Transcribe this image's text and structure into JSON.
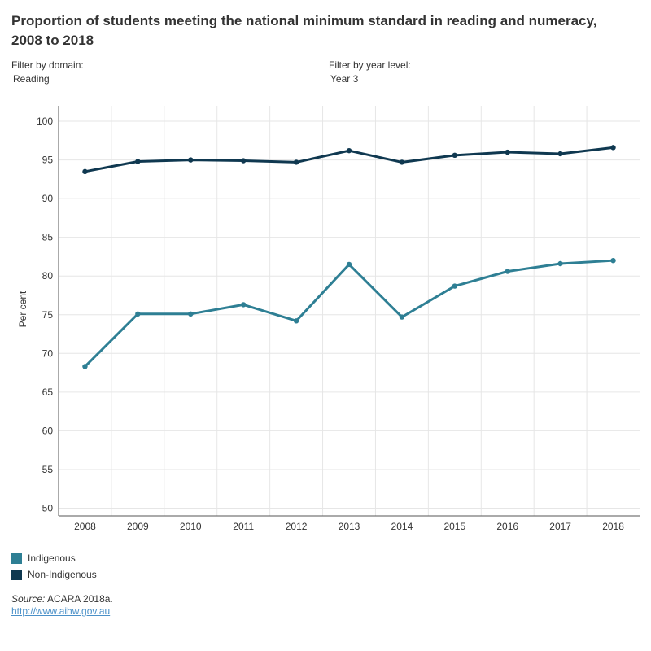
{
  "title": "Proportion of students meeting the national minimum standard in reading and numeracy, 2008 to 2018",
  "filters": {
    "domain": {
      "label": "Filter by domain:",
      "value": "Reading"
    },
    "year_level": {
      "label": "Filter by year level:",
      "value": "Year 3"
    }
  },
  "chart_data": {
    "type": "line",
    "title": "Proportion of students meeting the national minimum standard in reading and numeracy, 2008 to 2018",
    "xlabel": "",
    "ylabel": "Per cent",
    "x": [
      "2008",
      "2009",
      "2010",
      "2011",
      "2012",
      "2013",
      "2014",
      "2015",
      "2016",
      "2017",
      "2018"
    ],
    "ylim": [
      49,
      102
    ],
    "yticks": [
      50,
      55,
      60,
      65,
      70,
      75,
      80,
      85,
      90,
      95,
      100
    ],
    "grid": true,
    "series": [
      {
        "name": "Indigenous",
        "color": "#2e7f94",
        "values": [
          68.3,
          75.1,
          75.1,
          76.3,
          74.2,
          81.5,
          74.7,
          78.7,
          80.6,
          81.6,
          82.0
        ]
      },
      {
        "name": "Non-Indigenous",
        "color": "#0f3850",
        "values": [
          93.5,
          94.8,
          95.0,
          94.9,
          94.7,
          96.2,
          94.7,
          95.6,
          96.0,
          95.8,
          96.6
        ]
      }
    ]
  },
  "legend": [
    {
      "label": "Indigenous",
      "color": "#2e7f94"
    },
    {
      "label": "Non-Indigenous",
      "color": "#0f3850"
    }
  ],
  "source": {
    "prefix": "Source:",
    "text": " ACARA 2018a."
  },
  "link": "http://www.aihw.gov.au"
}
